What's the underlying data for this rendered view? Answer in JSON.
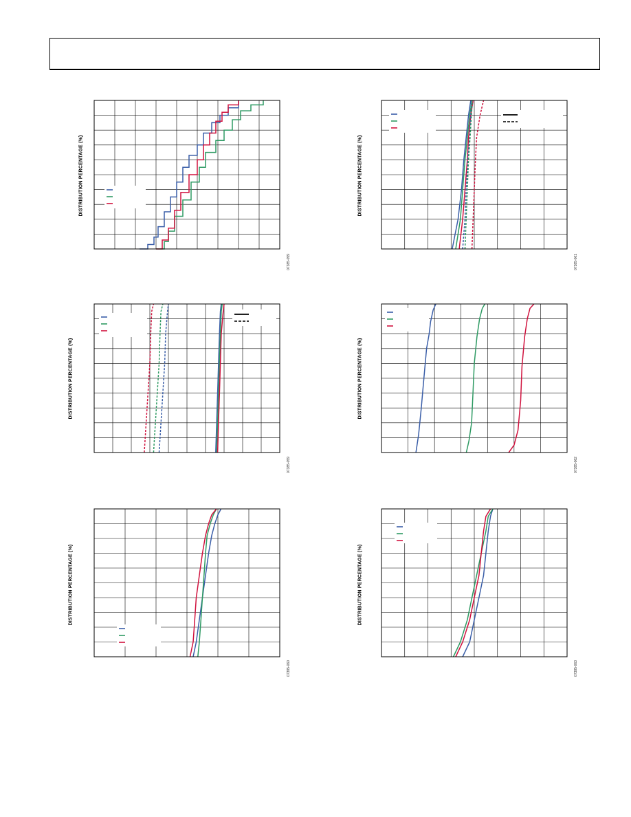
{
  "colors": {
    "blue": "#3a5ea8",
    "green": "#2e9a63",
    "red": "#d0123e",
    "grid": "#000000"
  },
  "chart_data": [
    {
      "type": "line",
      "ylabel": "DISTRIBUTION PERCENTAGE (%)",
      "figure_id": "07385-059",
      "grid": {
        "xdiv": 9,
        "ydiv": 10
      },
      "xlim": [
        0,
        9
      ],
      "ylim": [
        0,
        100
      ],
      "legend": {
        "placement": "lower-left",
        "entries": 3
      },
      "series": [
        {
          "color": "blue",
          "style": "solid",
          "step": true,
          "x": [
            2.2,
            2.6,
            2.9,
            3.1,
            3.4,
            3.7,
            4.0,
            4.3,
            4.6,
            5.0,
            5.3,
            5.7,
            6.1,
            6.5,
            7.0
          ],
          "y": [
            0,
            3,
            8,
            15,
            25,
            35,
            45,
            55,
            63,
            70,
            78,
            85,
            90,
            95,
            100
          ]
        },
        {
          "color": "green",
          "style": "solid",
          "step": true,
          "x": [
            3.0,
            3.4,
            3.6,
            3.9,
            4.3,
            4.7,
            5.1,
            5.4,
            5.9,
            6.3,
            6.7,
            7.1,
            7.6,
            8.2
          ],
          "y": [
            0,
            5,
            12,
            22,
            33,
            45,
            55,
            65,
            73,
            80,
            87,
            93,
            97,
            100
          ]
        },
        {
          "color": "red",
          "style": "solid",
          "step": true,
          "x": [
            3.0,
            3.3,
            3.6,
            3.9,
            4.2,
            4.6,
            5.0,
            5.3,
            5.6,
            5.9,
            6.2,
            6.5,
            7.0
          ],
          "y": [
            0,
            6,
            14,
            26,
            38,
            50,
            60,
            70,
            78,
            86,
            92,
            97,
            100
          ]
        }
      ]
    },
    {
      "type": "line",
      "ylabel": "DISTRIBUTION PERCENTAGE (%)",
      "figure_id": "07385-061",
      "grid": {
        "xdiv": 8,
        "ydiv": 10
      },
      "xlim": [
        0,
        8
      ],
      "ylim": [
        0,
        100
      ],
      "legend": {
        "placement": "top-left",
        "entries": 3
      },
      "legend2": {
        "placement": "top-right",
        "entries": [
          "solid",
          "dashed"
        ]
      },
      "series": [
        {
          "color": "blue",
          "style": "solid",
          "x": [
            3.05,
            3.3,
            3.45,
            3.55,
            3.65,
            3.75,
            3.85
          ],
          "y": [
            0,
            20,
            40,
            60,
            75,
            90,
            100
          ]
        },
        {
          "color": "green",
          "style": "solid",
          "x": [
            3.2,
            3.4,
            3.5,
            3.6,
            3.7,
            3.8,
            3.9
          ],
          "y": [
            0,
            20,
            40,
            60,
            75,
            90,
            100
          ]
        },
        {
          "color": "red",
          "style": "solid",
          "x": [
            3.35,
            3.5,
            3.6,
            3.7,
            3.75,
            3.85,
            3.95
          ],
          "y": [
            0,
            20,
            40,
            60,
            75,
            90,
            100
          ]
        },
        {
          "color": "blue",
          "style": "dashed",
          "x": [
            3.5,
            3.6,
            3.65,
            3.72,
            3.8,
            3.85,
            3.9
          ],
          "y": [
            0,
            20,
            40,
            60,
            75,
            90,
            100
          ]
        },
        {
          "color": "green",
          "style": "dashed",
          "x": [
            3.6,
            3.65,
            3.7,
            3.75,
            3.82,
            3.88,
            3.92
          ],
          "y": [
            0,
            20,
            40,
            60,
            75,
            90,
            100
          ]
        },
        {
          "color": "red",
          "style": "dashed",
          "x": [
            3.9,
            3.95,
            4.0,
            4.05,
            4.1,
            4.25,
            4.4
          ],
          "y": [
            0,
            20,
            40,
            60,
            75,
            90,
            100
          ]
        }
      ]
    },
    {
      "type": "line",
      "ylabel": "DISTRIBUTION PERCENTAGE (%)",
      "figure_id": "07385-059",
      "grid": {
        "xdiv": 10,
        "ydiv": 10
      },
      "xlim": [
        0,
        10
      ],
      "ylim": [
        0,
        100
      ],
      "legend": {
        "placement": "top-left",
        "entries": 3
      },
      "legend2": {
        "placement": "top-right",
        "entries": [
          "solid",
          "dashed"
        ]
      },
      "series": [
        {
          "color": "blue",
          "style": "solid",
          "x": [
            6.55,
            6.6,
            6.65,
            6.7,
            6.75,
            6.8,
            6.85
          ],
          "y": [
            0,
            20,
            40,
            60,
            80,
            95,
            100
          ]
        },
        {
          "color": "green",
          "style": "solid",
          "x": [
            6.6,
            6.65,
            6.7,
            6.75,
            6.8,
            6.85,
            6.9
          ],
          "y": [
            0,
            20,
            40,
            60,
            80,
            95,
            100
          ]
        },
        {
          "color": "red",
          "style": "solid",
          "x": [
            6.65,
            6.7,
            6.75,
            6.8,
            6.85,
            6.95,
            7.0
          ],
          "y": [
            0,
            20,
            40,
            60,
            80,
            95,
            100
          ]
        },
        {
          "color": "blue",
          "style": "dashed",
          "x": [
            3.5,
            3.6,
            3.7,
            3.8,
            3.85,
            3.95,
            4.0
          ],
          "y": [
            0,
            20,
            40,
            60,
            80,
            95,
            100
          ]
        },
        {
          "color": "green",
          "style": "dashed",
          "x": [
            3.2,
            3.3,
            3.4,
            3.5,
            3.55,
            3.6,
            3.7
          ],
          "y": [
            0,
            20,
            40,
            60,
            80,
            95,
            100
          ]
        },
        {
          "color": "red",
          "style": "dashed",
          "x": [
            2.7,
            2.8,
            2.9,
            3.0,
            3.05,
            3.1,
            3.2
          ],
          "y": [
            0,
            20,
            40,
            60,
            80,
            95,
            100
          ]
        }
      ]
    },
    {
      "type": "line",
      "ylabel": "DISTRIBUTION PERCENTAGE (%)",
      "figure_id": "07385-062",
      "grid": {
        "xdiv": 7,
        "ydiv": 10
      },
      "xlim": [
        0,
        7
      ],
      "ylim": [
        0,
        100
      ],
      "legend": {
        "placement": "top-left",
        "entries": 3
      },
      "series": [
        {
          "color": "blue",
          "style": "solid",
          "x": [
            1.3,
            1.4,
            1.5,
            1.6,
            1.7,
            1.8,
            1.85,
            1.95,
            2.05
          ],
          "y": [
            0,
            12,
            30,
            50,
            70,
            80,
            88,
            96,
            100
          ]
        },
        {
          "color": "green",
          "style": "solid",
          "x": [
            3.2,
            3.3,
            3.4,
            3.45,
            3.5,
            3.6,
            3.7,
            3.8,
            3.9
          ],
          "y": [
            0,
            8,
            20,
            40,
            60,
            78,
            90,
            97,
            100
          ]
        },
        {
          "color": "red",
          "style": "solid",
          "x": [
            4.8,
            5.0,
            5.15,
            5.25,
            5.3,
            5.4,
            5.5,
            5.6,
            5.75
          ],
          "y": [
            0,
            5,
            15,
            35,
            58,
            78,
            90,
            97,
            100
          ]
        }
      ]
    },
    {
      "type": "line",
      "ylabel": "DISTRIBUTION PERCENTAGE (%)",
      "figure_id": "07385-060",
      "grid": {
        "xdiv": 6,
        "ydiv": 10
      },
      "xlim": [
        0,
        6
      ],
      "ylim": [
        0,
        100
      ],
      "legend": {
        "placement": "lower-left",
        "entries": 3
      },
      "series": [
        {
          "color": "blue",
          "style": "solid",
          "x": [
            3.2,
            3.3,
            3.4,
            3.5,
            3.6,
            3.7,
            3.8,
            3.9,
            4.0,
            4.1
          ],
          "y": [
            0,
            10,
            25,
            40,
            55,
            70,
            82,
            90,
            96,
            100
          ]
        },
        {
          "color": "green",
          "style": "solid",
          "x": [
            3.35,
            3.4,
            3.45,
            3.5,
            3.55,
            3.6,
            3.65,
            3.75,
            3.85,
            3.95
          ],
          "y": [
            0,
            10,
            25,
            40,
            55,
            70,
            82,
            90,
            96,
            100
          ]
        },
        {
          "color": "red",
          "style": "solid",
          "x": [
            3.1,
            3.2,
            3.25,
            3.3,
            3.4,
            3.5,
            3.6,
            3.7,
            3.8,
            3.95
          ],
          "y": [
            0,
            10,
            25,
            40,
            55,
            70,
            82,
            90,
            96,
            100
          ]
        }
      ]
    },
    {
      "type": "line",
      "ylabel": "DISTRIBUTION PERCENTAGE (%)",
      "figure_id": "07385-063",
      "grid": {
        "xdiv": 8,
        "ydiv": 10
      },
      "xlim": [
        0,
        8
      ],
      "ylim": [
        0,
        100
      ],
      "legend": {
        "placement": "top-left",
        "entries": 3
      },
      "series": [
        {
          "color": "blue",
          "style": "solid",
          "x": [
            3.5,
            3.8,
            4.0,
            4.2,
            4.4,
            4.5,
            4.6,
            4.7,
            4.8
          ],
          "y": [
            0,
            10,
            25,
            40,
            55,
            70,
            85,
            95,
            100
          ]
        },
        {
          "color": "green",
          "style": "solid",
          "x": [
            3.1,
            3.4,
            3.7,
            3.9,
            4.1,
            4.3,
            4.5,
            4.6,
            4.8
          ],
          "y": [
            0,
            10,
            25,
            40,
            55,
            70,
            85,
            95,
            100
          ]
        },
        {
          "color": "red",
          "style": "solid",
          "x": [
            3.2,
            3.5,
            3.8,
            4.0,
            4.2,
            4.3,
            4.4,
            4.5,
            4.7
          ],
          "y": [
            0,
            10,
            25,
            40,
            55,
            70,
            85,
            95,
            100
          ]
        }
      ]
    }
  ]
}
